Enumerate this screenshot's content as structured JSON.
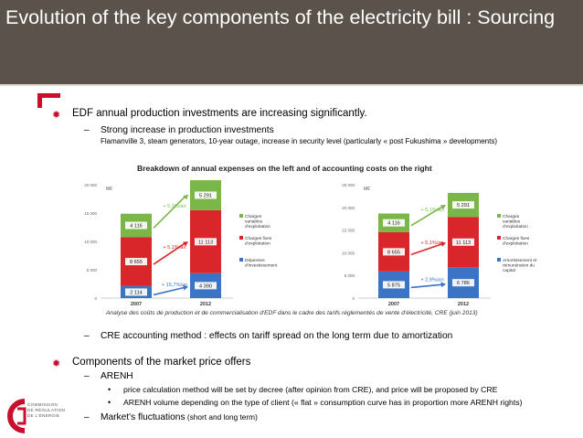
{
  "slide": {
    "title": "Evolution of the key components of the electricity bill : Sourcing",
    "point1": "EDF annual production investments are increasing significantly.",
    "point1_dash": "–",
    "point1_sub": "Strong increase in production investments",
    "point1_sub_detail": "Flamanville 3, steam generators, 10-year outage, increase in security level (particularly « post Fukushima » developments)",
    "charts_caption": "Breakdown of annual expenses on the left and of accounting costs on the right",
    "source_note": "Analyse des coûts de production et de commercialisation d'EDF dans le cadre des tarifs réglementés de vente d'électricité, CRE (juin 2013)",
    "point2_dash": "–",
    "point2": "CRE accounting method : effects on tariff spread on the long term due to amortization",
    "point3": "Components of the market price offers",
    "arenh_dash": "–",
    "arenh": "ARENH",
    "arenh_b1_mark": "•",
    "arenh_b1": "price calculation method will be set by decree (after opinion from CRE), and price will be proposed by CRE",
    "arenh_b2_mark": "•",
    "arenh_b2": "ARENH volume depending on the type of client (« flat » consumption curve has in proportion more ARENH rights)",
    "market_dash": "–",
    "market": "Market's fluctuations",
    "market_small": " (short and long term)",
    "bullet_glyph": "✹",
    "logo_text": [
      "COMMISSION",
      "DE RÉGULATION",
      "DE L'ÉNERGIE"
    ]
  },
  "colors": {
    "header_bg": "#5b534b",
    "accent_red": "#c8102e",
    "green": "#7ab648",
    "red": "#d9262b",
    "blue": "#3b73c5"
  },
  "chart_data": [
    {
      "type": "bar",
      "stacked": true,
      "categories": [
        "2007",
        "2012"
      ],
      "ylabel": "M€",
      "ylim": [
        0,
        20000
      ],
      "yticks": [
        "0",
        "5 000",
        "10 000",
        "15 000",
        "20 000"
      ],
      "series": [
        {
          "name": "Dépenses d'investissement",
          "values": [
            2114,
            4390
          ],
          "color": "#3b73c5"
        },
        {
          "name": "Charges fixes d'exploitation",
          "values": [
            8655,
            11113
          ],
          "color": "#d9262b"
        },
        {
          "name": "Charges variables d'exploitation",
          "values": [
            4116,
            5291
          ],
          "color": "#7ab648"
        }
      ],
      "data_labels": [
        [
          "2 114",
          "4 390"
        ],
        [
          "8 655",
          "11 113"
        ],
        [
          "4 116",
          "5 291"
        ]
      ],
      "growth_labels": [
        "+ 15,7%/an",
        "+ 5,1%/an",
        "+ 5,1%/an"
      ],
      "legend": "right"
    },
    {
      "type": "bar",
      "stacked": true,
      "categories": [
        "2007",
        "2012"
      ],
      "ylabel": "M€",
      "ylim": [
        0,
        25000
      ],
      "yticks": [
        "0",
        "5 000",
        "10 000",
        "15 000",
        "20 000",
        "25 000"
      ],
      "series": [
        {
          "name": "Amortissement et rémunération du capital",
          "values": [
            5875,
            6786
          ],
          "color": "#3b73c5"
        },
        {
          "name": "Charges fixes d'exploitation",
          "values": [
            8655,
            11113
          ],
          "color": "#d9262b"
        },
        {
          "name": "Charges variables d'exploitation",
          "values": [
            4116,
            5291
          ],
          "color": "#7ab648"
        }
      ],
      "data_labels": [
        [
          "5 875",
          "6 786"
        ],
        [
          "8 655",
          "11 113"
        ],
        [
          "4 116",
          "5 291"
        ]
      ],
      "growth_labels": [
        "+ 2,9%/an",
        "+ 5,1%/an",
        "+ 5,1%/an"
      ],
      "legend": "right"
    }
  ]
}
